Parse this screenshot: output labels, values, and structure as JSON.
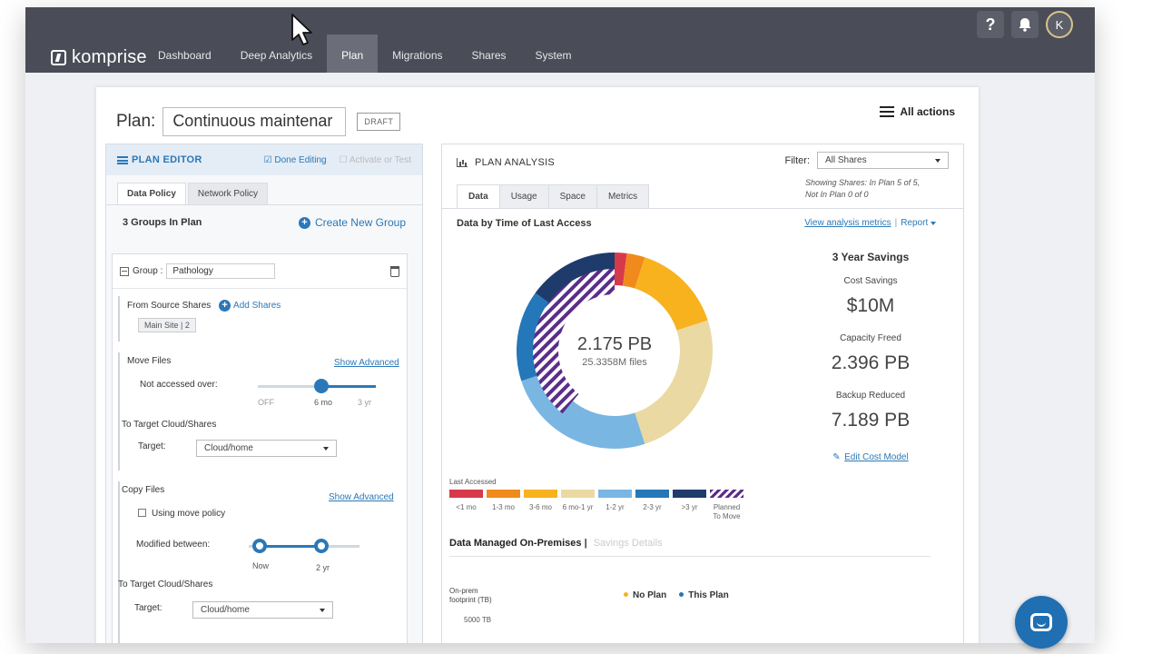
{
  "brand": {
    "name": "komprise"
  },
  "nav": {
    "items": [
      {
        "label": "Dashboard",
        "active": false
      },
      {
        "label": "Deep Analytics",
        "active": false
      },
      {
        "label": "Plan",
        "active": true
      },
      {
        "label": "Migrations",
        "active": false
      },
      {
        "label": "Shares",
        "active": false
      },
      {
        "label": "System",
        "active": false
      }
    ],
    "help_glyph": "?",
    "avatar_initial": "K"
  },
  "plan": {
    "label": "Plan:",
    "name": "Continuous maintenar",
    "status": "DRAFT",
    "all_actions": "All actions"
  },
  "editor": {
    "title": "PLAN EDITOR",
    "done_editing": "Done Editing",
    "activate": "Activate or Test",
    "tabs": [
      "Data Policy",
      "Network Policy"
    ],
    "groups_count": "3 Groups In Plan",
    "create_group": "Create New Group",
    "group": {
      "label": "Group :",
      "name": "Pathology",
      "from_source": "From Source Shares",
      "add_shares": "Add Shares",
      "source_chip": "Main Site | 2",
      "move_files": "Move Files",
      "show_advanced": "Show Advanced",
      "not_accessed": "Not accessed over:",
      "move_slider": {
        "ticks": [
          "OFF",
          "6 mo",
          "3 yr"
        ],
        "value_index": 1
      },
      "to_target": "To Target Cloud/Shares",
      "target_label": "Target:",
      "target_value": "Cloud/home",
      "copy_files": "Copy Files",
      "using_move_policy": "Using move policy",
      "modified_between": "Modified between:",
      "copy_slider": {
        "ticks": [
          "Now",
          "2 yr"
        ]
      }
    }
  },
  "analysis": {
    "title": "PLAN ANALYSIS",
    "filter_label": "Filter:",
    "filter_value": "All Shares",
    "filter_note_1": "Showing Shares: In Plan 5 of 5,",
    "filter_note_2": "Not In Plan 0 of 0",
    "tabs": [
      "Data",
      "Usage",
      "Space",
      "Metrics"
    ],
    "subtitle": "Data by Time of Last Access",
    "view_metrics": "View analysis metrics",
    "report": "Report",
    "donut": {
      "total": "2.175 PB",
      "files": "25.3358M files",
      "segments": [
        {
          "label": "<1 mo",
          "value": 2.0,
          "color": "#d63a4a"
        },
        {
          "label": "1-3 mo",
          "value": 3.0,
          "color": "#f08a1c"
        },
        {
          "label": "3-6 mo",
          "value": 15.0,
          "color": "#f7b21e"
        },
        {
          "label": "6 mo-1 yr",
          "value": 25.0,
          "color": "#ead9a2"
        },
        {
          "label": "1-2 yr",
          "value": 25.0,
          "color": "#7ab6e2"
        },
        {
          "label": "2-3 yr",
          "value": 15.0,
          "color": "#2477b8"
        },
        {
          "label": ">3 yr",
          "value": 15.0,
          "color": "#1f3b6b"
        }
      ],
      "planned_to_move_fraction": 0.33
    },
    "legend_title": "Last Accessed",
    "legend": [
      {
        "label": "<1 mo",
        "color": "#d63a4a"
      },
      {
        "label": "1-3 mo",
        "color": "#f08a1c"
      },
      {
        "label": "3-6 mo",
        "color": "#f7b21e"
      },
      {
        "label": "6 mo-1 yr",
        "color": "#ead9a2"
      },
      {
        "label": "1-2 yr",
        "color": "#7ab6e2"
      },
      {
        "label": "2-3 yr",
        "color": "#2477b8"
      },
      {
        "label": ">3 yr",
        "color": "#1f3b6b"
      },
      {
        "label": "Planned To Move",
        "color": "hatch"
      }
    ],
    "savings": {
      "title": "3 Year Savings",
      "cost_label": "Cost Savings",
      "cost_value": "$10M",
      "capacity_label": "Capacity Freed",
      "capacity_value": "2.396 PB",
      "backup_label": "Backup Reduced",
      "backup_value": "7.189 PB",
      "edit_model": "Edit Cost Model"
    },
    "onprem": {
      "title": "Data Managed On-Premises",
      "savings_details": "Savings Details",
      "ylabel_1": "On-prem",
      "ylabel_2": "footprint (TB)",
      "legend_no_plan": "No Plan",
      "legend_this_plan": "This Plan",
      "no_plan_color": "#f7b21e",
      "this_plan_color": "#2477b8",
      "tick": "5000 TB"
    }
  }
}
